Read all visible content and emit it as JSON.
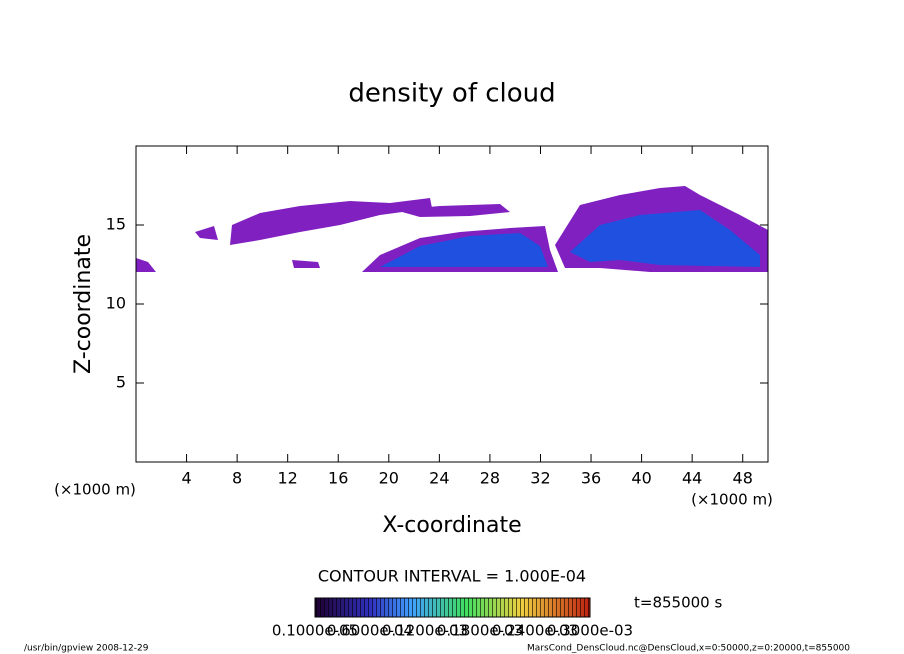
{
  "chart_data": {
    "type": "contour",
    "title": "density of cloud",
    "x_label": "X-coordinate",
    "y_label": "Z-coordinate",
    "x_unit": "(×1000 m)",
    "y_unit": "(×1000 m)",
    "xlim": [
      0,
      50
    ],
    "ylim": [
      0,
      20
    ],
    "xticks": [
      4,
      8,
      12,
      16,
      20,
      24,
      28,
      32,
      36,
      40,
      44,
      48
    ],
    "yticks": [
      5,
      10,
      15
    ],
    "contour_interval": "CONTOUR INTERVAL = 1.000E-04",
    "time": "t=855000 s",
    "colorbar_labels": [
      "0.1000e-05",
      "0.6000e-04",
      "0.1200e-03",
      "0.1800e-03",
      "0.2400e-03",
      "0.3000e-03"
    ]
  },
  "footer": {
    "left": "/usr/bin/gpview   2008-12-29",
    "right": "MarsCond_DensCloud.nc@DensCloud,x=0:50000,z=0:20000,t=855000"
  }
}
